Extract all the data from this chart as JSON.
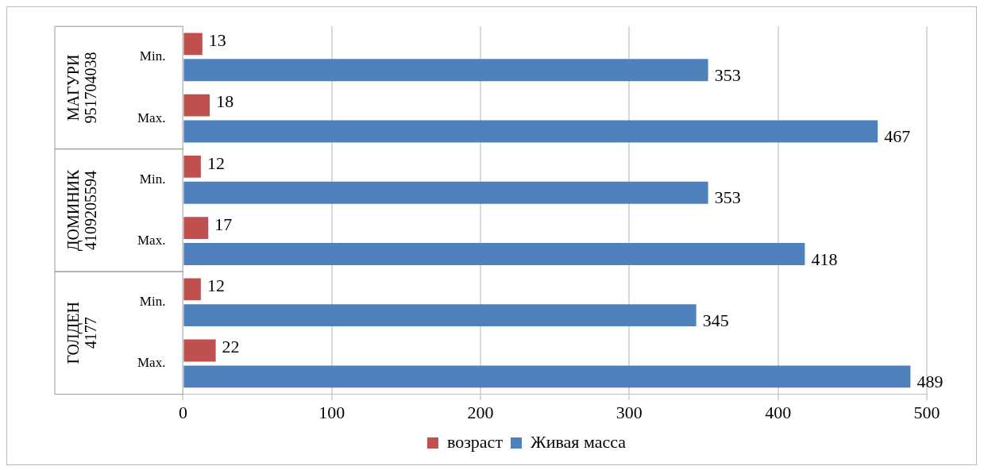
{
  "chart_data": {
    "type": "bar",
    "orientation": "horizontal",
    "categories": [
      "Min.",
      "Max.",
      "Min.",
      "Max.",
      "Min.",
      "Max."
    ],
    "series": [
      {
        "name": "возраст",
        "color": "#c0504d",
        "values": [
          13,
          18,
          12,
          17,
          12,
          22
        ]
      },
      {
        "name": "Живая масса",
        "color": "#4f81bd",
        "values": [
          353,
          467,
          353,
          418,
          345,
          489
        ]
      }
    ],
    "annotations": [
      "МАГУРИ 951704038",
      "ДОМИНИК 4109205594",
      "ГОЛДЕН 4177"
    ],
    "xlim": [
      0,
      500
    ],
    "xticks": [
      0,
      100,
      200,
      300,
      400,
      500
    ],
    "grid": "x",
    "legend": "bottom",
    "data_labels": true
  }
}
